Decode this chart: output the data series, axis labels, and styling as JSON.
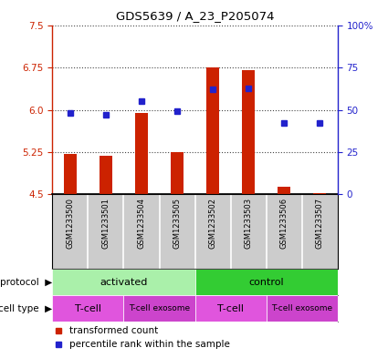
{
  "title": "GDS5639 / A_23_P205074",
  "samples": [
    "GSM1233500",
    "GSM1233501",
    "GSM1233504",
    "GSM1233505",
    "GSM1233502",
    "GSM1233503",
    "GSM1233506",
    "GSM1233507"
  ],
  "transformed_count": [
    5.22,
    5.18,
    5.95,
    5.25,
    6.75,
    6.7,
    4.63,
    4.52
  ],
  "percentile_rank": [
    48,
    47,
    55,
    49,
    62,
    63,
    42,
    42
  ],
  "ylim": [
    4.5,
    7.5
  ],
  "yticks": [
    4.5,
    5.25,
    6.0,
    6.75,
    7.5
  ],
  "y2lim": [
    0,
    100
  ],
  "y2ticks": [
    0,
    25,
    50,
    75,
    100
  ],
  "y2labels": [
    "0",
    "25",
    "50",
    "75",
    "100%"
  ],
  "bar_color": "#cc2200",
  "dot_color": "#2222cc",
  "protocol_groups": [
    {
      "label": "activated",
      "start": 0,
      "end": 4,
      "color": "#aaf0aa"
    },
    {
      "label": "control",
      "start": 4,
      "end": 8,
      "color": "#33cc33"
    }
  ],
  "cell_type_groups": [
    {
      "label": "T-cell",
      "start": 0,
      "end": 2,
      "color": "#e055dd"
    },
    {
      "label": "T-cell exosome",
      "start": 2,
      "end": 4,
      "color": "#cc44cc"
    },
    {
      "label": "T-cell",
      "start": 4,
      "end": 6,
      "color": "#e055dd"
    },
    {
      "label": "T-cell exosome",
      "start": 6,
      "end": 8,
      "color": "#cc44cc"
    }
  ],
  "legend_items": [
    {
      "label": "transformed count",
      "color": "#cc2200"
    },
    {
      "label": "percentile rank within the sample",
      "color": "#2222cc"
    }
  ],
  "bar_color_label": "#cc2200",
  "y2label_color": "#2222cc",
  "sample_box_color": "#cccccc",
  "bar_width": 0.35
}
